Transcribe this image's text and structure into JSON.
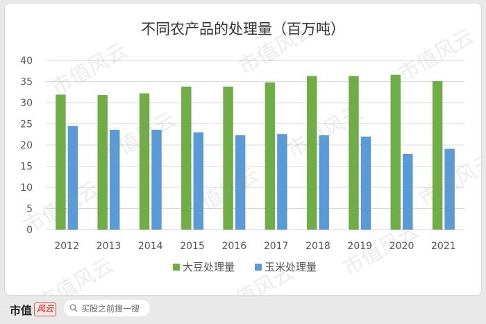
{
  "watermark": "市值风云",
  "chart_data": {
    "type": "bar",
    "title": "不同农产品的处理量（百万吨）",
    "categories": [
      "2012",
      "2013",
      "2014",
      "2015",
      "2016",
      "2017",
      "2018",
      "2019",
      "2020",
      "2021"
    ],
    "series": [
      {
        "name": "大豆处理量",
        "color": "#70ad47",
        "values": [
          31.9,
          31.8,
          32.2,
          33.8,
          33.8,
          34.8,
          36.3,
          36.3,
          36.6,
          35.1
        ]
      },
      {
        "name": "玉米处理量",
        "color": "#5b9bd5",
        "values": [
          24.5,
          23.6,
          23.6,
          23.0,
          22.3,
          22.6,
          22.3,
          22.0,
          17.9,
          19.1
        ]
      }
    ],
    "ylim": [
      0,
      40
    ],
    "yticks": [
      0,
      5,
      10,
      15,
      20,
      25,
      30,
      35,
      40
    ],
    "grid": true,
    "legend_position": "bottom"
  },
  "footer": {
    "brand": "市值",
    "brand_logo": "风云",
    "search_placeholder": "买股之前搜一搜",
    "search_icon": "search-icon"
  }
}
